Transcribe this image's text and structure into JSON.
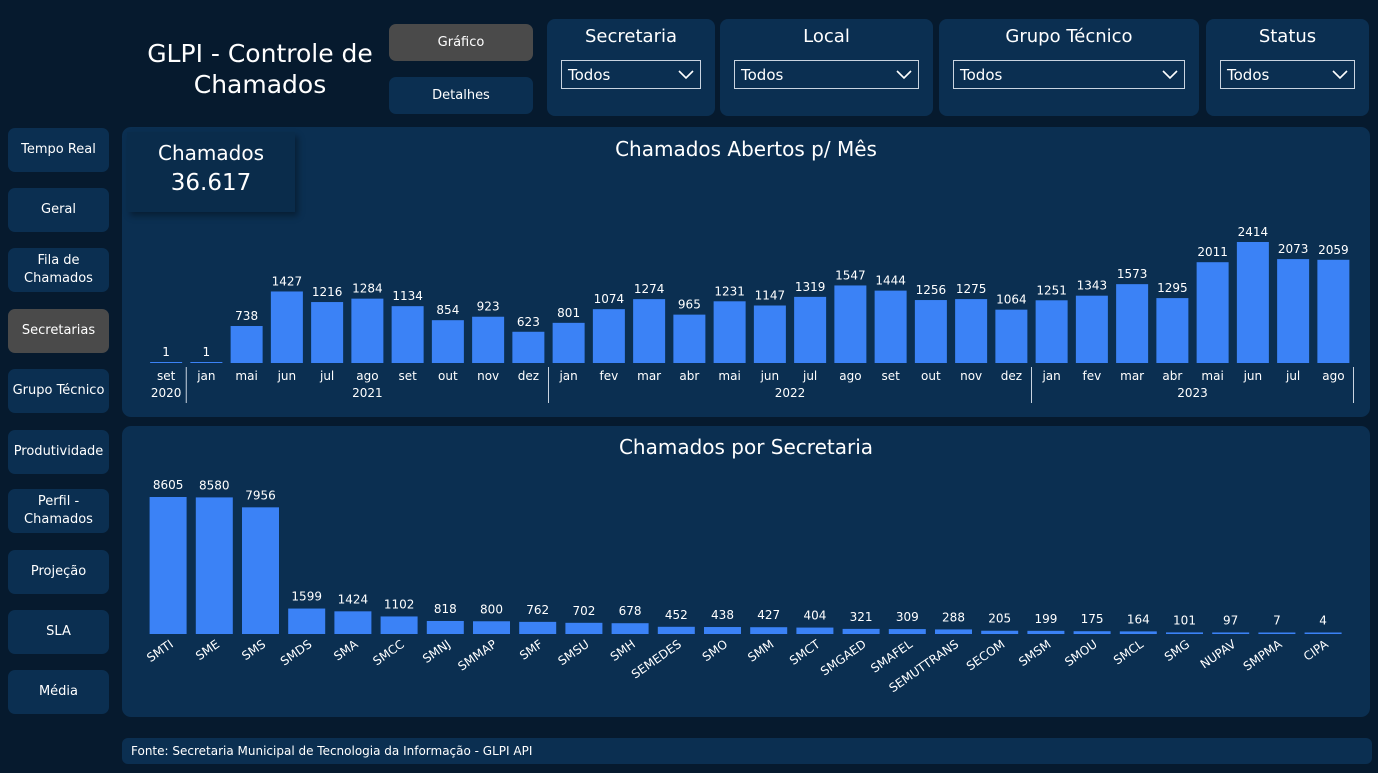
{
  "header": {
    "title": "GLPI - Controle de Chamados",
    "buttons": {
      "grafico": "Gráfico",
      "detalhes": "Detalhes"
    }
  },
  "filters": [
    {
      "label": "Secretaria",
      "value": "Todos"
    },
    {
      "label": "Local",
      "value": "Todos"
    },
    {
      "label": "Grupo Técnico",
      "value": "Todos"
    },
    {
      "label": "Status",
      "value": "Todos"
    }
  ],
  "sidebar": {
    "items": [
      {
        "label": "Tempo Real"
      },
      {
        "label": "Geral"
      },
      {
        "label": "Fila de Chamados"
      },
      {
        "label": "Secretarias",
        "active": true
      },
      {
        "label": "Grupo Técnico"
      },
      {
        "label": "Produtividade"
      },
      {
        "label": "Perfil - Chamados"
      },
      {
        "label": "Projeção"
      },
      {
        "label": "SLA"
      },
      {
        "label": "Média"
      }
    ]
  },
  "kpi": {
    "label": "Chamados",
    "value": "36.617"
  },
  "footer": {
    "text": "Fonte: Secretaria Municipal de Tecnologia da Informação - GLPI API"
  },
  "colors": {
    "bar": "#3b82f6",
    "panel": "#0b2f51",
    "background": "#061a2e",
    "active_button": "#4a4a4a"
  },
  "chart_data": [
    {
      "type": "bar",
      "title": "Chamados Abertos p/ Mês",
      "categories": [
        "set",
        "jan",
        "mai",
        "jun",
        "jul",
        "ago",
        "set",
        "out",
        "nov",
        "dez",
        "jan",
        "fev",
        "mar",
        "abr",
        "mai",
        "jun",
        "jul",
        "ago",
        "set",
        "out",
        "nov",
        "dez",
        "jan",
        "fev",
        "mar",
        "abr",
        "mai",
        "jun",
        "jul",
        "ago"
      ],
      "years": [
        {
          "label": "2020",
          "count": 1
        },
        {
          "label": "2021",
          "count": 9
        },
        {
          "label": "2022",
          "count": 12
        },
        {
          "label": "2023",
          "count": 8
        }
      ],
      "values": [
        1,
        1,
        738,
        1427,
        1216,
        1284,
        1134,
        854,
        923,
        623,
        801,
        1074,
        1274,
        965,
        1231,
        1147,
        1319,
        1547,
        1444,
        1256,
        1275,
        1064,
        1251,
        1343,
        1573,
        1295,
        2011,
        2414,
        2073,
        2059
      ],
      "ylim": [
        0,
        2414
      ]
    },
    {
      "type": "bar",
      "title": "Chamados por Secretaria",
      "categories": [
        "SMTI",
        "SME",
        "SMS",
        "SMDS",
        "SMA",
        "SMCC",
        "SMNJ",
        "SMMAP",
        "SMF",
        "SMSU",
        "SMH",
        "SEMEDES",
        "SMO",
        "SMM",
        "SMCT",
        "SMGAED",
        "SMAFEL",
        "SEMUTTRANS",
        "SECOM",
        "SMSM",
        "SMOU",
        "SMCL",
        "SMG",
        "NUPAV",
        "SMPMA",
        "CIPA"
      ],
      "values": [
        8605,
        8580,
        7956,
        1599,
        1424,
        1102,
        818,
        800,
        762,
        702,
        678,
        452,
        438,
        427,
        404,
        321,
        309,
        288,
        205,
        199,
        175,
        164,
        101,
        97,
        7,
        4
      ],
      "ylim": [
        0,
        8605
      ]
    }
  ]
}
